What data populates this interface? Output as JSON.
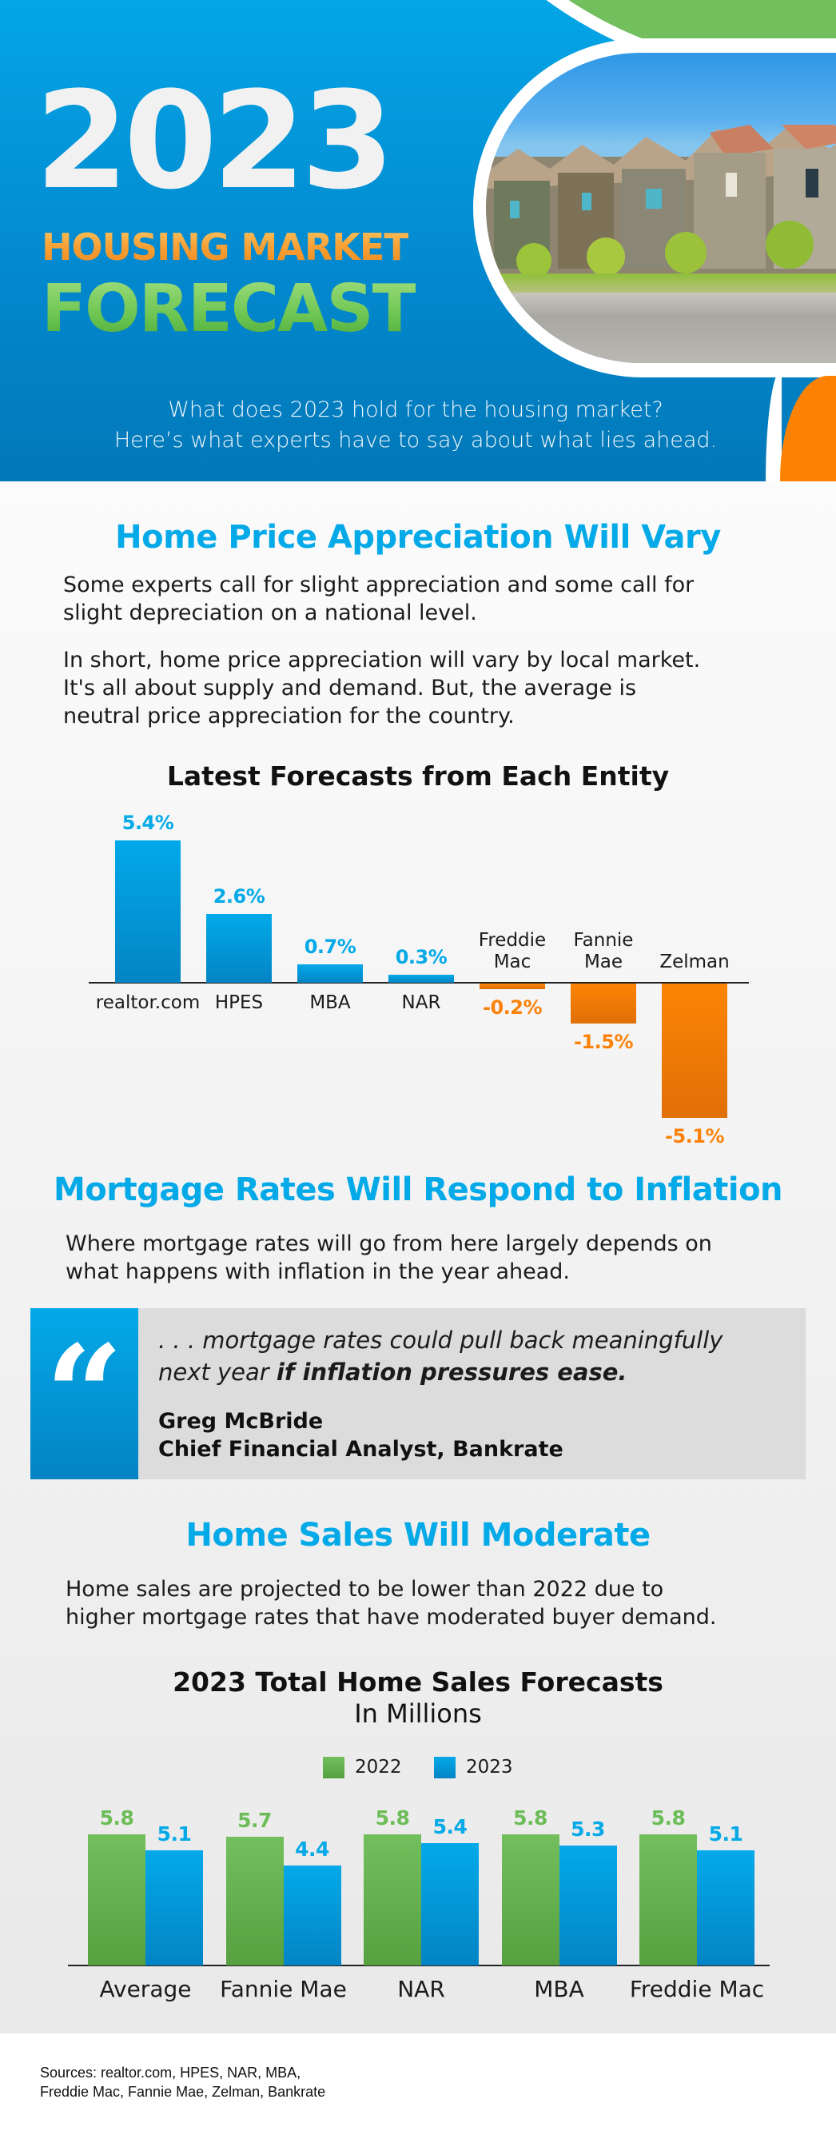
{
  "header": {
    "year": "2023",
    "title_line1": "HOUSING MARKET",
    "title_line2": "FORECAST",
    "subtitle_line1": "What does 2023 hold for the housing market?",
    "subtitle_line2": "Here’s what experts have to say about what lies ahead.",
    "photo_alt": "row-of-suburban-houses-photo"
  },
  "colors": {
    "blue": "#04a9e8",
    "green": "#73bf5e",
    "orange": "#fd8204",
    "grey_panel": "#dcdcdc",
    "text": "#1b1b1b"
  },
  "section1": {
    "heading": "Home Price Appreciation Will Vary",
    "para1_line1": "Some experts call for slight appreciation and some call for",
    "para1_line2": "slight depreciation on a national level.",
    "para2_line1": "In short, home price appreciation will vary by local market.",
    "para2_line2": "It's all about supply and demand. But, the average is",
    "para2_line3": "neutral price appreciation for the country."
  },
  "section2": {
    "heading": "Mortgage Rates Will Respond to Inflation",
    "para_line1": "Where mortgage rates will go from here largely depends on",
    "para_line2": "what happens with inflation in the year ahead.",
    "quote": {
      "mark": "“",
      "text_line1": ". . . mortgage rates could pull back meaningfully",
      "text_line2_plain": "next year ",
      "text_line2_bold": "if inflation pressures ease.",
      "author_name": "Greg McBride",
      "author_title": "Chief Financial Analyst, Bankrate"
    }
  },
  "section3": {
    "heading": "Home Sales Will Moderate",
    "para_line1": "Home sales are projected to be lower than 2022 due to",
    "para_line2": "higher mortgage rates that have moderated buyer demand."
  },
  "footer": {
    "sources_line1": "Sources: realtor.com, HPES, NAR, MBA,",
    "sources_line2": "Freddie Mac, Fannie Mae, Zelman, Bankrate"
  },
  "chart_data": [
    {
      "type": "bar",
      "title": "Latest Forecasts from Each Entity",
      "xlabel": "",
      "ylabel": "",
      "categories": [
        "realtor.com",
        "HPES",
        "MBA",
        "NAR",
        "Freddie Mac",
        "Fannie Mae",
        "Zelman"
      ],
      "category_lines": [
        [
          "realtor.com"
        ],
        [
          "HPES"
        ],
        [
          "MBA"
        ],
        [
          "NAR"
        ],
        [
          "Freddie",
          "Mac"
        ],
        [
          "Fannie",
          "Mae"
        ],
        [
          "Zelman"
        ]
      ],
      "values": [
        5.4,
        2.6,
        0.7,
        0.3,
        -0.2,
        -1.5,
        -5.1
      ],
      "value_labels": [
        "5.4%",
        "2.6%",
        "0.7%",
        "0.3%",
        "-0.2%",
        "-1.5%",
        "-5.1%"
      ],
      "unit": "%",
      "colors": {
        "positive": "#04a9e8",
        "negative": "#fd8204"
      },
      "grid": false,
      "legend": null,
      "ylim": [
        -5.1,
        5.4
      ]
    },
    {
      "type": "bar",
      "title": "2023 Total Home Sales Forecasts",
      "subtitle": "In Millions",
      "xlabel": "",
      "ylabel": "",
      "categories": [
        "Average",
        "Fannie Mae",
        "NAR",
        "MBA",
        "Freddie Mac"
      ],
      "series": [
        {
          "name": "2022",
          "color": "#73bf5e",
          "values": [
            5.8,
            5.7,
            5.8,
            5.8,
            5.8
          ],
          "labels": [
            "5.8",
            "5.7",
            "5.8",
            "5.8",
            "5.8"
          ]
        },
        {
          "name": "2023",
          "color": "#04a9e8",
          "values": [
            5.1,
            4.4,
            5.4,
            5.3,
            5.1
          ],
          "labels": [
            "5.1",
            "4.4",
            "5.4",
            "5.3",
            "5.1"
          ]
        }
      ],
      "grid": false,
      "legend_position": "top",
      "ylim": [
        0,
        5.8
      ]
    }
  ]
}
